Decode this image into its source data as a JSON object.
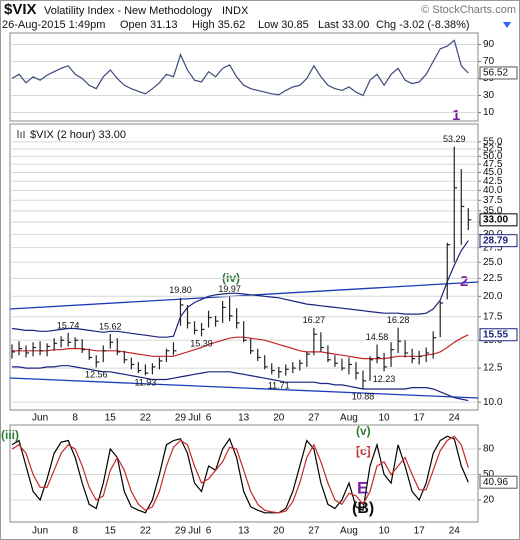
{
  "header": {
    "symbol": "$VIX",
    "name": "Volatility Index - New Methodology",
    "exchange": "INDX",
    "source": "© StockCharts.com",
    "date": "26-Aug-2015 1:49pm",
    "quote": [
      "Open 31.13",
      "High 35.62",
      "Low 30.85",
      "Last 33.00",
      "Chg -3.02 (-8.38%)"
    ]
  },
  "chart_data": [
    {
      "type": "line",
      "ylim": [
        0,
        100
      ],
      "yticks": [
        90,
        70,
        50,
        30,
        10
      ],
      "grid": true,
      "show_last": true,
      "series": [
        {
          "color": "#3b4a7a",
          "values": [
            50,
            55,
            45,
            52,
            48,
            54,
            58,
            62,
            65,
            55,
            50,
            42,
            38,
            52,
            60,
            50,
            42,
            38,
            35,
            32,
            38,
            45,
            55,
            52,
            78,
            60,
            48,
            46,
            58,
            52,
            62,
            66,
            52,
            42,
            38,
            36,
            34,
            32,
            31,
            36,
            40,
            42,
            50,
            65,
            52,
            42,
            38,
            36,
            40,
            34,
            30,
            48,
            55,
            42,
            55,
            62,
            48,
            44,
            46,
            55,
            70,
            85,
            88,
            95,
            65,
            56.52
          ]
        }
      ]
    },
    {
      "type": "ohlc",
      "title": "$VIX (2 hour) 33.00",
      "log": true,
      "ylim": [
        9.5,
        61
      ],
      "grid": true,
      "color": "#222222",
      "yticks": [
        {
          "value": 10,
          "label": "10.0"
        },
        {
          "value": 12.5,
          "label": "12.5"
        },
        {
          "value": 15,
          "label": "15.0"
        },
        {
          "value": 17.5,
          "label": "17.5"
        },
        {
          "value": 20,
          "label": "20.0"
        },
        {
          "value": 22.5,
          "label": "22.5"
        },
        {
          "value": 25,
          "label": "25.0"
        },
        {
          "value": 27.5,
          "label": "27.5"
        },
        {
          "value": 30,
          "label": "30.0"
        },
        {
          "value": 32.5,
          "label": "32.5"
        },
        {
          "value": 35,
          "label": "35.0"
        },
        {
          "value": 37.5,
          "label": "37.5"
        },
        {
          "value": 40,
          "label": "40.0"
        },
        {
          "value": 42.5,
          "label": "42.5"
        },
        {
          "value": 45,
          "label": "45.0"
        },
        {
          "value": 47.5,
          "label": "47.5"
        },
        {
          "value": 50,
          "label": "50.0"
        },
        {
          "value": 52.5,
          "label": "52.5"
        },
        {
          "value": 55,
          "label": "55.0"
        }
      ],
      "categories": [
        null,
        null,
        null,
        null,
        "Jun",
        null,
        null,
        null,
        null,
        "8",
        null,
        null,
        null,
        null,
        "15",
        null,
        null,
        null,
        null,
        "22",
        null,
        null,
        null,
        null,
        "29",
        null,
        "Jul",
        null,
        "6",
        null,
        null,
        null,
        null,
        "13",
        null,
        null,
        null,
        null,
        "20",
        null,
        null,
        null,
        null,
        "27",
        null,
        null,
        null,
        null,
        "Aug",
        null,
        null,
        null,
        null,
        "10",
        null,
        null,
        null,
        null,
        "17",
        null,
        null,
        null,
        null,
        "24",
        null,
        null
      ],
      "high": [
        14.6,
        14.9,
        14.5,
        14.8,
        14.9,
        14.7,
        15.2,
        15.4,
        15.74,
        15.3,
        15.1,
        14.2,
        13.6,
        14.5,
        15.62,
        15.2,
        14.0,
        13.4,
        13.0,
        12.8,
        12.9,
        13.4,
        14.2,
        14.8,
        19.8,
        18.9,
        17.0,
        16.8,
        18.2,
        17.6,
        19.4,
        19.97,
        18.5,
        17.0,
        15.2,
        14.2,
        13.6,
        12.9,
        12.6,
        12.8,
        13.0,
        13.2,
        13.9,
        16.27,
        15.8,
        14.5,
        13.6,
        13.3,
        13.4,
        13.0,
        12.3,
        13.5,
        14.58,
        13.8,
        14.8,
        16.28,
        15.0,
        14.2,
        14.0,
        14.3,
        15.9,
        19.4,
        28.4,
        53.29,
        46.0,
        35.62
      ],
      "low": [
        13.3,
        13.6,
        13.4,
        13.5,
        13.6,
        13.5,
        14.0,
        14.3,
        14.4,
        14.2,
        13.8,
        13.2,
        12.56,
        13.0,
        14.2,
        13.6,
        12.9,
        12.4,
        12.1,
        11.93,
        12.0,
        12.4,
        13.0,
        13.6,
        16.5,
        16.2,
        15.6,
        15.39,
        16.3,
        16.4,
        16.8,
        17.0,
        16.2,
        14.8,
        13.7,
        13.1,
        12.4,
        12.0,
        11.71,
        11.9,
        12.1,
        12.3,
        12.6,
        13.6,
        13.9,
        13.0,
        12.6,
        12.3,
        12.0,
        11.6,
        10.88,
        11.5,
        12.9,
        12.23,
        12.6,
        13.8,
        13.4,
        12.9,
        12.8,
        13.0,
        13.3,
        15.3,
        19.6,
        25.0,
        28.0,
        30.85
      ],
      "close": [
        13.9,
        14.2,
        13.8,
        14.3,
        14.0,
        14.4,
        14.7,
        15.0,
        14.8,
        15.0,
        14.1,
        13.4,
        13.0,
        14.0,
        14.8,
        13.9,
        13.2,
        12.8,
        12.3,
        12.1,
        12.6,
        13.1,
        14.0,
        14.0,
        18.9,
        16.8,
        16.0,
        16.1,
        17.4,
        17.0,
        18.6,
        17.6,
        16.8,
        15.0,
        14.0,
        13.4,
        12.6,
        12.3,
        12.2,
        12.4,
        12.5,
        12.9,
        13.7,
        15.6,
        14.3,
        13.2,
        12.9,
        12.5,
        12.8,
        12.1,
        11.5,
        13.2,
        13.4,
        12.6,
        14.1,
        14.9,
        13.8,
        13.3,
        13.5,
        13.8,
        15.25,
        19.14,
        28.03,
        40.7,
        36.02,
        33.0
      ],
      "high_labels": [
        null,
        null,
        null,
        null,
        null,
        null,
        null,
        null,
        "15.74",
        null,
        null,
        null,
        null,
        null,
        "15.62",
        null,
        null,
        null,
        null,
        null,
        null,
        null,
        null,
        null,
        "19.80",
        null,
        null,
        null,
        null,
        null,
        null,
        "19.97",
        null,
        null,
        null,
        null,
        null,
        null,
        null,
        null,
        null,
        null,
        null,
        "16.27",
        null,
        null,
        null,
        null,
        null,
        null,
        null,
        null,
        "14.58",
        null,
        null,
        "16.28",
        null,
        null,
        null,
        null,
        null,
        null,
        null,
        "53.29",
        null,
        null
      ],
      "low_labels": [
        null,
        null,
        null,
        null,
        null,
        null,
        null,
        null,
        null,
        null,
        null,
        null,
        "12.56",
        null,
        null,
        null,
        null,
        null,
        null,
        "11.93",
        null,
        null,
        null,
        null,
        null,
        null,
        null,
        "15.39",
        null,
        null,
        null,
        null,
        null,
        null,
        null,
        null,
        null,
        null,
        "11.71",
        null,
        null,
        null,
        null,
        null,
        null,
        null,
        null,
        null,
        null,
        null,
        "10.88",
        null,
        null,
        "12.23",
        null,
        null,
        null,
        null,
        null,
        null,
        null,
        null,
        null,
        null,
        null,
        null
      ],
      "series": [
        {
          "color": "#1a237e",
          "values": [
            16.2,
            16.1,
            16.0,
            16.0,
            15.9,
            15.9,
            16.0,
            16.1,
            16.2,
            16.2,
            16.1,
            16.0,
            15.9,
            15.8,
            15.9,
            15.9,
            15.8,
            15.7,
            15.6,
            15.5,
            15.4,
            15.3,
            15.3,
            15.4,
            17.5,
            18.6,
            19.2,
            19.6,
            20.0,
            20.2,
            20.3,
            20.4,
            20.4,
            20.3,
            20.2,
            20.1,
            20.0,
            19.9,
            19.8,
            19.6,
            19.4,
            19.2,
            19.0,
            18.9,
            18.8,
            18.7,
            18.6,
            18.5,
            18.4,
            18.3,
            18.2,
            18.1,
            18.0,
            17.9,
            17.9,
            17.9,
            17.8,
            17.8,
            17.8,
            17.9,
            18.4,
            19.5,
            22.0,
            24.5,
            27.0,
            28.79
          ]
        },
        {
          "color": "#1a237e",
          "values": [
            12.6,
            12.6,
            12.5,
            12.5,
            12.5,
            12.6,
            12.6,
            12.7,
            12.7,
            12.6,
            12.5,
            12.4,
            12.3,
            12.2,
            12.2,
            12.1,
            12.0,
            11.9,
            11.8,
            11.7,
            11.6,
            11.6,
            11.6,
            11.7,
            11.8,
            11.9,
            12.0,
            12.1,
            12.2,
            12.2,
            12.2,
            12.2,
            12.1,
            12.0,
            11.9,
            11.8,
            11.7,
            11.6,
            11.5,
            11.4,
            11.4,
            11.4,
            11.4,
            11.4,
            11.3,
            11.3,
            11.2,
            11.2,
            11.1,
            11.0,
            10.9,
            10.9,
            10.9,
            10.9,
            10.9,
            10.9,
            10.9,
            11.0,
            11.0,
            11.0,
            10.9,
            10.7,
            10.5,
            10.3,
            10.2,
            10.1
          ]
        },
        {
          "color": "#c62828",
          "values": [
            14.0,
            14.0,
            14.0,
            14.0,
            14.0,
            14.0,
            14.1,
            14.1,
            14.2,
            14.2,
            14.2,
            14.1,
            14.0,
            14.0,
            14.0,
            14.0,
            13.9,
            13.8,
            13.7,
            13.6,
            13.5,
            13.5,
            13.5,
            13.5,
            13.7,
            13.9,
            14.1,
            14.3,
            14.6,
            14.8,
            15.0,
            15.2,
            15.3,
            15.3,
            15.2,
            15.1,
            15.0,
            14.8,
            14.6,
            14.4,
            14.2,
            14.0,
            13.9,
            13.9,
            13.9,
            13.8,
            13.7,
            13.6,
            13.5,
            13.4,
            13.3,
            13.3,
            13.3,
            13.3,
            13.4,
            13.5,
            13.5,
            13.5,
            13.5,
            13.6,
            13.7,
            13.9,
            14.3,
            14.8,
            15.2,
            15.55
          ]
        }
      ],
      "right_labels": [
        {
          "value": 33,
          "label": "33.00",
          "color": "#000000"
        },
        {
          "value": 28.79,
          "label": "28.79",
          "color": "#1a237e"
        },
        {
          "value": 15.55,
          "label": "15.55",
          "color": "#1a237e"
        }
      ],
      "annotations": [
        {
          "text": "1",
          "color": "#7b1fa2"
        },
        {
          "text": "2",
          "color": "#7b1fa2"
        },
        {
          "text": "(iv)",
          "color": "#2e7d32"
        }
      ]
    },
    {
      "type": "line",
      "ylim": [
        0,
        100
      ],
      "yticks": [
        80,
        50,
        20
      ],
      "grid": true,
      "show_last": true,
      "series": [
        {
          "color": "#000000",
          "values": [
            85,
            90,
            60,
            30,
            20,
            45,
            75,
            88,
            90,
            70,
            40,
            15,
            10,
            40,
            80,
            70,
            30,
            12,
            8,
            5,
            20,
            50,
            85,
            90,
            92,
            75,
            40,
            30,
            60,
            55,
            80,
            92,
            70,
            30,
            12,
            8,
            5,
            5,
            5,
            10,
            30,
            60,
            90,
            80,
            40,
            15,
            10,
            20,
            40,
            12,
            8,
            60,
            85,
            50,
            40,
            85,
            60,
            30,
            20,
            40,
            75,
            90,
            95,
            92,
            60,
            40.96
          ]
        },
        {
          "color": "#c62828",
          "values": [
            80,
            85,
            75,
            50,
            35,
            35,
            55,
            75,
            85,
            80,
            60,
            35,
            20,
            25,
            55,
            70,
            55,
            30,
            15,
            8,
            12,
            30,
            60,
            82,
            90,
            85,
            60,
            40,
            45,
            55,
            65,
            82,
            80,
            55,
            30,
            15,
            8,
            6,
            5,
            7,
            18,
            40,
            70,
            85,
            65,
            40,
            20,
            15,
            28,
            25,
            15,
            30,
            60,
            65,
            50,
            60,
            70,
            50,
            32,
            32,
            55,
            78,
            90,
            95,
            85,
            58
          ]
        }
      ],
      "annotations": [
        {
          "text": "(iii)",
          "color": "#2e7d32"
        },
        {
          "text": "(v)",
          "color": "#2e7d32"
        },
        {
          "text": "[c]",
          "color": "#c62828"
        },
        {
          "text": "E",
          "color": "#7b1fa2"
        },
        {
          "text": "(B)",
          "color": "#000000"
        }
      ]
    }
  ]
}
